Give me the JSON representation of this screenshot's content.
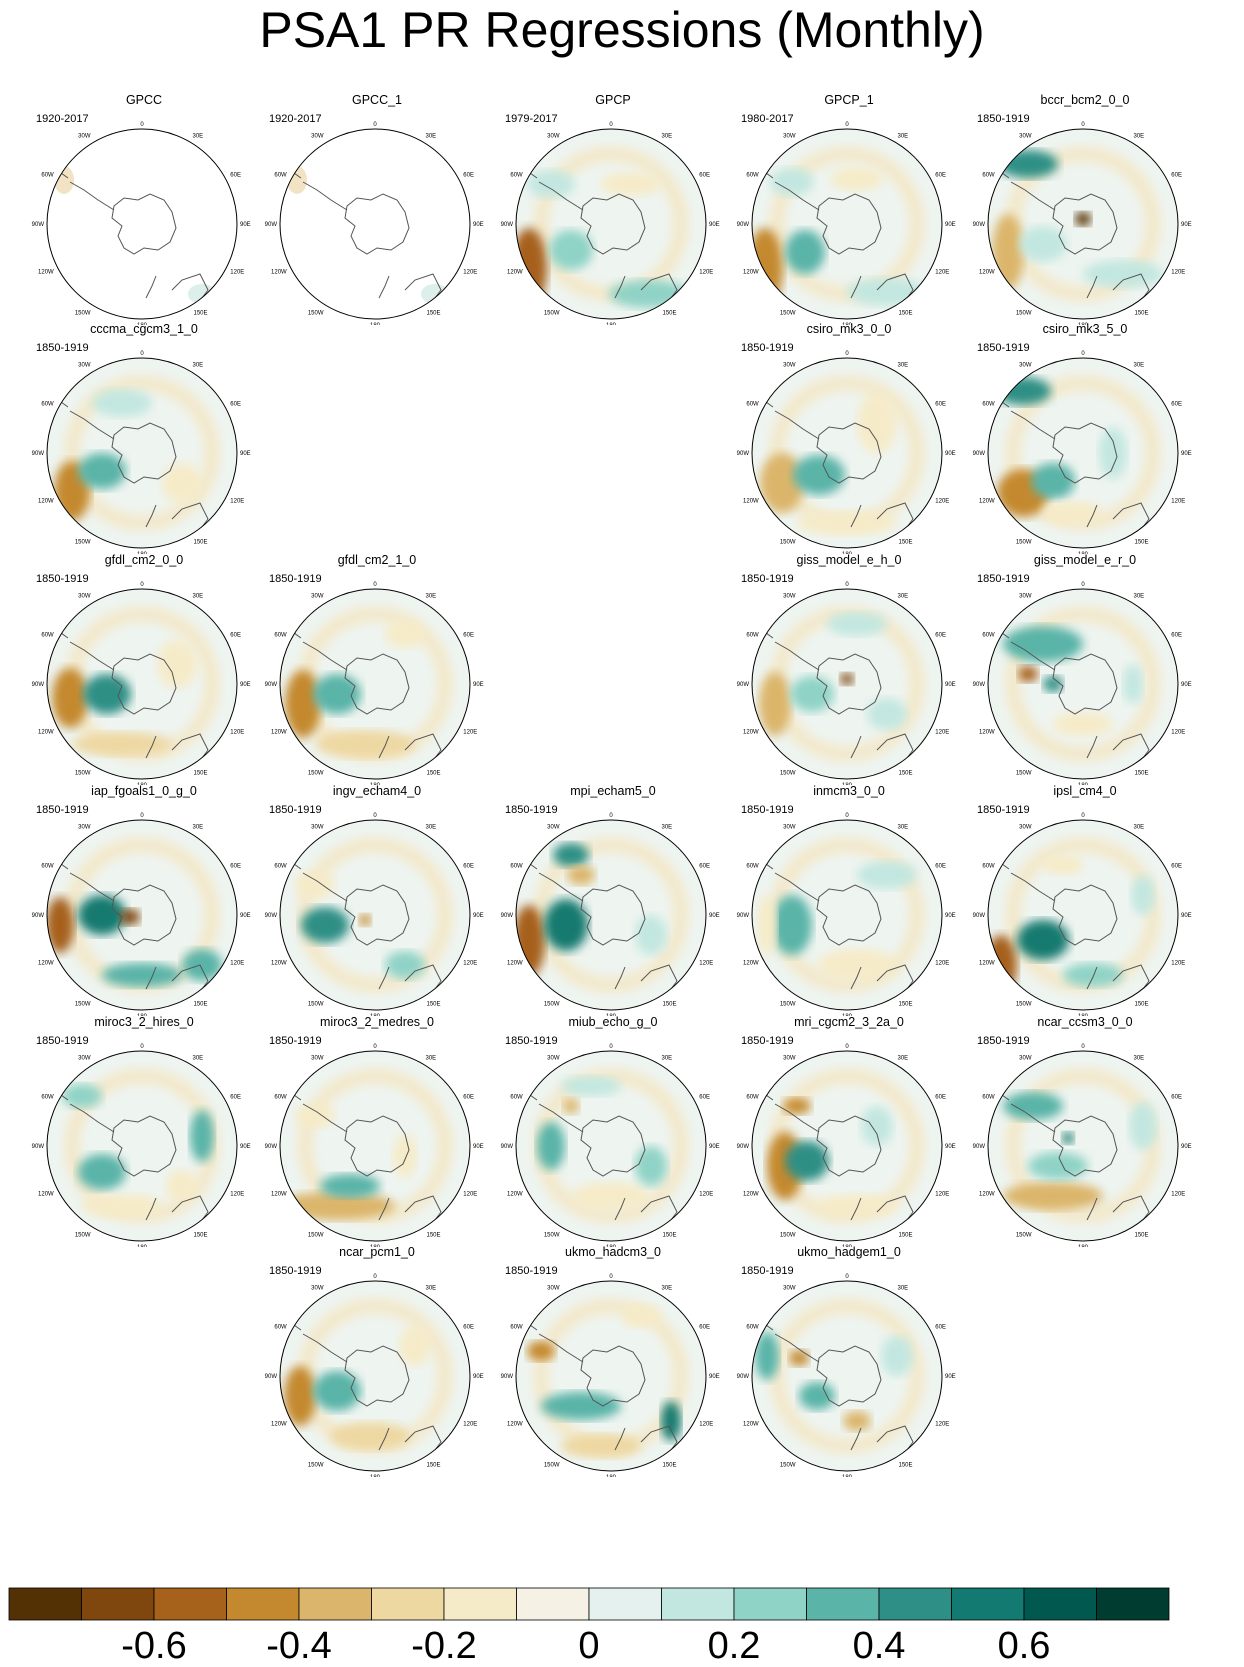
{
  "title": "PSA1 PR Regressions (Monthly)",
  "colorbar": {
    "colors": [
      "#543005",
      "#7f470d",
      "#a6611a",
      "#c4892f",
      "#dbb56b",
      "#eed8a2",
      "#f6ebc8",
      "#f5f1e4",
      "#e4f1ef",
      "#c2e7e0",
      "#8fd3c6",
      "#5ab4a8",
      "#2d8f85",
      "#127a70",
      "#01584e",
      "#003c30"
    ],
    "tick_labels": [
      "-0.6",
      "-0.4",
      "-0.2",
      "0",
      "0.2",
      "0.4",
      "0.6"
    ]
  },
  "map_labels": {
    "top": "0",
    "top_right": "30E",
    "right_upper": "60E",
    "right": "90E",
    "right_lower": "120E",
    "bottom_right": "150E",
    "bottom": "180",
    "bottom_left": "150W",
    "left_lower": "120W",
    "left": "90W",
    "left_upper": "60W",
    "top_left": "30W"
  },
  "chart_data": {
    "type": "heatmap",
    "title": "PSA1 PR Regressions (Monthly)",
    "projection": "polar stereographic, Southern Hemisphere",
    "color_range": [
      -0.8,
      0.8
    ],
    "color_levels": 16,
    "panels": [
      {
        "name": "GPCC",
        "years": "1920-2017"
      },
      {
        "name": "GPCC_1",
        "years": "1920-2017"
      },
      {
        "name": "GPCP",
        "years": "1979-2017"
      },
      {
        "name": "GPCP_1",
        "years": "1980-2017"
      },
      {
        "name": "bccr_bcm2_0_0",
        "years": "1850-1919"
      },
      {
        "name": "cccma_cgcm3_1_0",
        "years": "1850-1919"
      },
      {
        "name": "csiro_mk3_0_0",
        "years": "1850-1919"
      },
      {
        "name": "csiro_mk3_5_0",
        "years": "1850-1919"
      },
      {
        "name": "gfdl_cm2_0_0",
        "years": "1850-1919"
      },
      {
        "name": "gfdl_cm2_1_0",
        "years": "1850-1919"
      },
      {
        "name": "giss_model_e_h_0",
        "years": "1850-1919"
      },
      {
        "name": "giss_model_e_r_0",
        "years": "1850-1919"
      },
      {
        "name": "iap_fgoals1_0_g_0",
        "years": "1850-1919"
      },
      {
        "name": "ingv_echam4_0",
        "years": "1850-1919"
      },
      {
        "name": "mpi_echam5_0",
        "years": "1850-1919"
      },
      {
        "name": "inmcm3_0_0",
        "years": "1850-1919"
      },
      {
        "name": "ipsl_cm4_0",
        "years": "1850-1919"
      },
      {
        "name": "miroc3_2_hires_0",
        "years": "1850-1919"
      },
      {
        "name": "miroc3_2_medres_0",
        "years": "1850-1919"
      },
      {
        "name": "miub_echo_g_0",
        "years": "1850-1919"
      },
      {
        "name": "mri_cgcm2_3_2a_0",
        "years": "1850-1919"
      },
      {
        "name": "ncar_ccsm3_0_0",
        "years": "1850-1919"
      },
      {
        "name": "ncar_pcm1_0",
        "years": "1850-1919"
      },
      {
        "name": "ukmo_hadcm3_0",
        "years": "1850-1919"
      },
      {
        "name": "ukmo_hadgem1_0",
        "years": "1850-1919"
      }
    ]
  }
}
